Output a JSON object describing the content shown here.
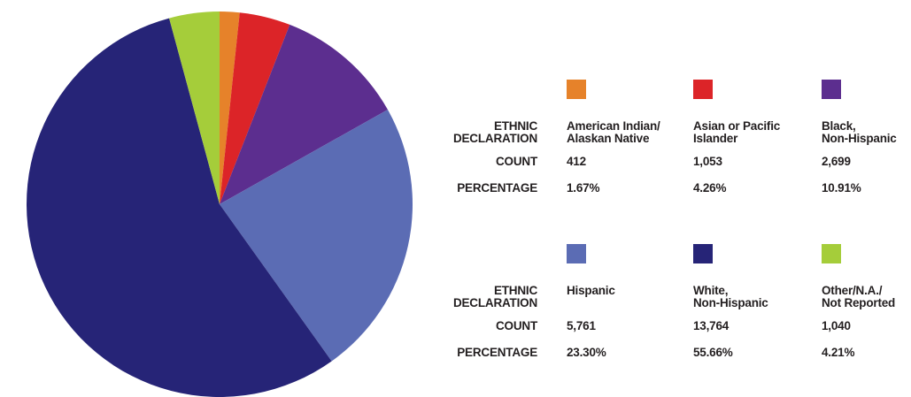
{
  "chart_data": {
    "type": "pie",
    "row_labels": [
      "ETHNIC\nDECLARATION",
      "COUNT",
      "PERCENTAGE"
    ],
    "categories": [
      "American Indian/\nAlaskan Native",
      "Asian or Pacific\nIslander",
      "Black,\nNon-Hispanic",
      "Hispanic",
      "White,\nNon-Hispanic",
      "Other/N.A./\nNot Reported"
    ],
    "values": [
      412,
      1053,
      2699,
      5761,
      13764,
      1040
    ],
    "value_labels": [
      "412",
      "1,053",
      "2,699",
      "5,761",
      "13,764",
      "1,040"
    ],
    "percentages": [
      1.67,
      4.26,
      10.91,
      23.3,
      55.66,
      4.21
    ],
    "percentage_labels": [
      "1.67%",
      "4.26%",
      "10.91%",
      "23.30%",
      "55.66%",
      "4.21%"
    ],
    "colors": [
      "#e6822a",
      "#dc2428",
      "#5c2e8f",
      "#5b6cb4",
      "#262477",
      "#a5cd3a"
    ]
  }
}
